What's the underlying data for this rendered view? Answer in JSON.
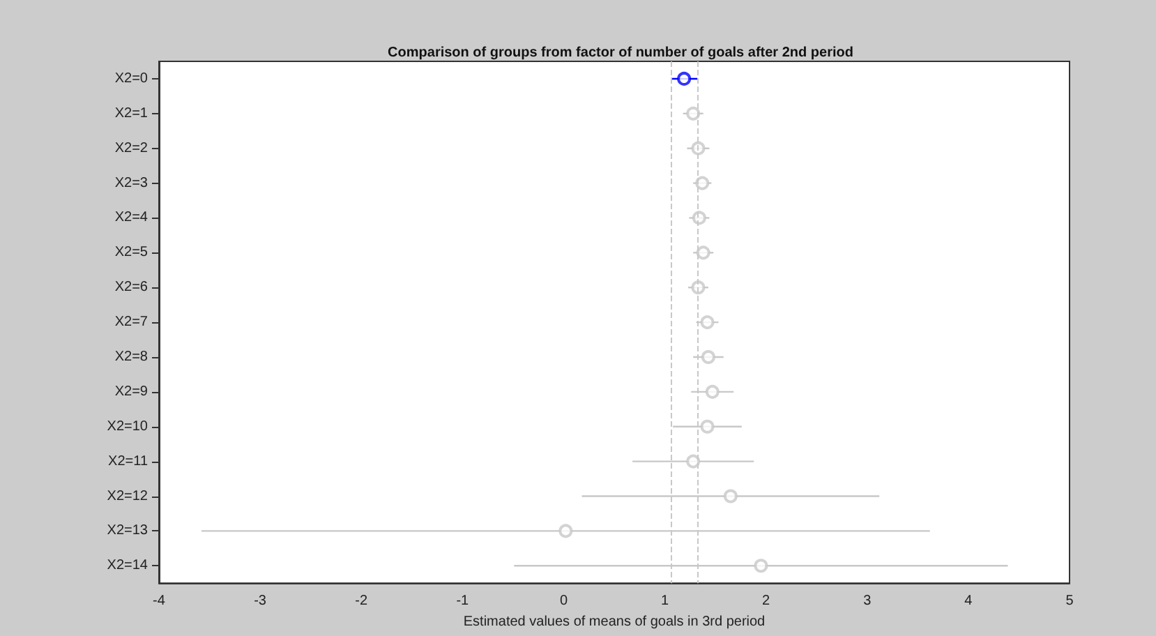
{
  "chart_data": {
    "type": "scatter",
    "orientation": "horizontal",
    "title": "Comparison of groups from factor of number of goals after 2nd period",
    "xlabel": "Estimated values of means of goals in 3rd period",
    "categories": [
      "X2=0",
      "X2=1",
      "X2=2",
      "X2=3",
      "X2=4",
      "X2=5",
      "X2=6",
      "X2=7",
      "X2=8",
      "X2=9",
      "X2=10",
      "X2=11",
      "X2=12",
      "X2=13",
      "X2=14"
    ],
    "values": [
      1.19,
      1.28,
      1.33,
      1.37,
      1.34,
      1.38,
      1.33,
      1.42,
      1.43,
      1.47,
      1.42,
      1.28,
      1.65,
      0.02,
      1.95
    ],
    "errors": [
      0.13,
      0.1,
      0.11,
      0.09,
      0.1,
      0.1,
      0.1,
      0.11,
      0.15,
      0.21,
      0.34,
      0.6,
      1.47,
      [
        3.6,
        3.6
      ],
      2.44
    ],
    "colors": [
      "#0000ff",
      "#c8c8c8",
      "#c8c8c8",
      "#c8c8c8",
      "#c8c8c8",
      "#c8c8c8",
      "#c8c8c8",
      "#c8c8c8",
      "#c8c8c8",
      "#c8c8c8",
      "#c8c8c8",
      "#c8c8c8",
      "#c8c8c8",
      "#c8c8c8",
      "#c8c8c8"
    ],
    "marker": "circle",
    "xlim": [
      -4,
      5
    ],
    "xticks": [
      -4,
      -3,
      -2,
      -1,
      0,
      1,
      2,
      3,
      4,
      5
    ],
    "ref_lines": [
      {
        "axis": "x",
        "value": 1.06,
        "label": null,
        "color": "#c8c8c8",
        "line_style": "dashed"
      },
      {
        "axis": "x",
        "value": 1.32,
        "label": null,
        "color": "#c8c8c8",
        "line_style": "dashed"
      }
    ],
    "grid": false
  }
}
